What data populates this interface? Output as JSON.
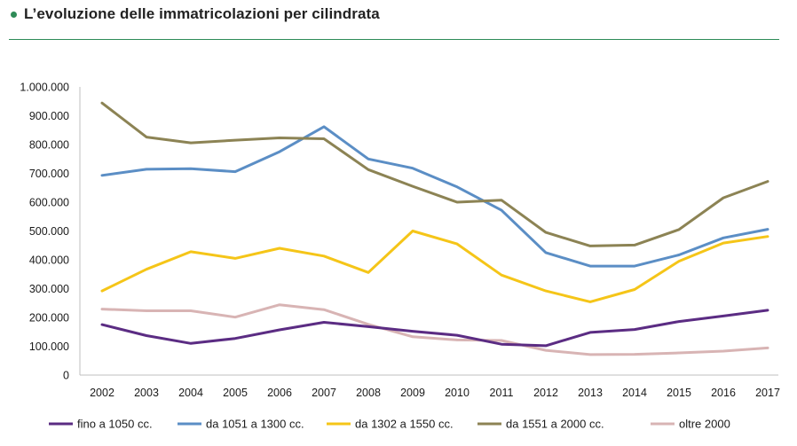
{
  "header": {
    "title": "L’evoluzione delle immatricolazioni per cilindrata"
  },
  "colors": {
    "accent": "#2e8b57"
  },
  "chart_data": {
    "type": "line",
    "title": "L’evoluzione delle immatricolazioni per cilindrata",
    "xlabel": "",
    "ylabel": "",
    "x": [
      "2002",
      "2003",
      "2004",
      "2005",
      "2006",
      "2007",
      "2008",
      "2009",
      "2010",
      "2011",
      "2012",
      "2013",
      "2014",
      "2015",
      "2016",
      "2017"
    ],
    "ylim": [
      0,
      1000000
    ],
    "y_ticks": [
      {
        "value": 0,
        "label": "0"
      },
      {
        "value": 100000,
        "label": "100.000"
      },
      {
        "value": 200000,
        "label": "200.000"
      },
      {
        "value": 300000,
        "label": "300.000"
      },
      {
        "value": 400000,
        "label": "400.000"
      },
      {
        "value": 500000,
        "label": "500.000"
      },
      {
        "value": 600000,
        "label": "600.000"
      },
      {
        "value": 700000,
        "label": "700.000"
      },
      {
        "value": 800000,
        "label": "800.000"
      },
      {
        "value": 900000,
        "label": "900.000"
      },
      {
        "value": 1000000,
        "label": "1.000.000"
      }
    ],
    "grid": false,
    "legend_position": "bottom",
    "series": [
      {
        "name": "fino a 1050 cc.",
        "color": "#5b2c83",
        "values": [
          175000,
          137000,
          110000,
          127000,
          157000,
          183000,
          168000,
          152000,
          138000,
          107000,
          102000,
          148000,
          158000,
          186000,
          205000,
          225000
        ]
      },
      {
        "name": "da 1051 a 1300 cc.",
        "color": "#5b8ec5",
        "values": [
          693000,
          714000,
          716000,
          706000,
          775000,
          862000,
          750000,
          718000,
          653000,
          572000,
          425000,
          378000,
          378000,
          417000,
          476000,
          506000
        ]
      },
      {
        "name": "da 1302 a 1550 cc.",
        "color": "#f5c518",
        "values": [
          292000,
          367000,
          428000,
          405000,
          440000,
          413000,
          356000,
          500000,
          455000,
          347000,
          292000,
          254000,
          297000,
          395000,
          458000,
          481000
        ]
      },
      {
        "name": "da 1551 a 2000 cc.",
        "color": "#8c8354",
        "values": [
          944000,
          826000,
          806000,
          815000,
          823000,
          820000,
          713000,
          655000,
          600000,
          607000,
          495000,
          448000,
          451000,
          505000,
          615000,
          672000
        ]
      },
      {
        "name": "oltre 2000",
        "color": "#d8b4b4",
        "values": [
          229000,
          223000,
          223000,
          201000,
          244000,
          227000,
          176000,
          133000,
          122000,
          120000,
          86000,
          71000,
          72000,
          77000,
          83000,
          94000
        ]
      }
    ]
  }
}
